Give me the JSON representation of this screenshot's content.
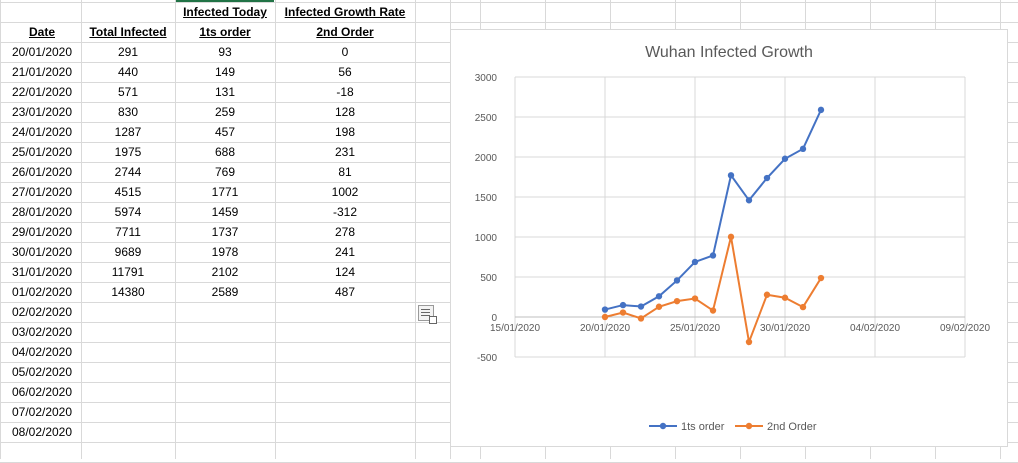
{
  "sheet": {
    "headers_row1": [
      "",
      "",
      "Infected Today",
      "Infected Growth Rate"
    ],
    "headers_row2": [
      "Date",
      "Total Infected",
      "1ts order",
      "2nd Order"
    ],
    "rows": [
      [
        "20/01/2020",
        "291",
        "93",
        "0"
      ],
      [
        "21/01/2020",
        "440",
        "149",
        "56"
      ],
      [
        "22/01/2020",
        "571",
        "131",
        "-18"
      ],
      [
        "23/01/2020",
        "830",
        "259",
        "128"
      ],
      [
        "24/01/2020",
        "1287",
        "457",
        "198"
      ],
      [
        "25/01/2020",
        "1975",
        "688",
        "231"
      ],
      [
        "26/01/2020",
        "2744",
        "769",
        "81"
      ],
      [
        "27/01/2020",
        "4515",
        "1771",
        "1002"
      ],
      [
        "28/01/2020",
        "5974",
        "1459",
        "-312"
      ],
      [
        "29/01/2020",
        "7711",
        "1737",
        "278"
      ],
      [
        "30/01/2020",
        "9689",
        "1978",
        "241"
      ],
      [
        "31/01/2020",
        "11791",
        "2102",
        "124"
      ],
      [
        "01/02/2020",
        "14380",
        "2589",
        "487"
      ],
      [
        "02/02/2020",
        "",
        "",
        ""
      ],
      [
        "03/02/2020",
        "",
        "",
        ""
      ],
      [
        "04/02/2020",
        "",
        "",
        ""
      ],
      [
        "05/02/2020",
        "",
        "",
        ""
      ],
      [
        "06/02/2020",
        "",
        "",
        ""
      ],
      [
        "07/02/2020",
        "",
        "",
        ""
      ],
      [
        "08/02/2020",
        "",
        "",
        ""
      ]
    ]
  },
  "chart_data": {
    "type": "line",
    "title": "Wuhan Infected Growth",
    "xlabel": "",
    "ylabel": "",
    "x": [
      "20/01/2020",
      "21/01/2020",
      "22/01/2020",
      "23/01/2020",
      "24/01/2020",
      "25/01/2020",
      "26/01/2020",
      "27/01/2020",
      "28/01/2020",
      "29/01/2020",
      "30/01/2020",
      "31/01/2020",
      "01/02/2020"
    ],
    "series": [
      {
        "name": "1ts order",
        "color": "#4472c4",
        "values": [
          93,
          149,
          131,
          259,
          457,
          688,
          769,
          1771,
          1459,
          1737,
          1978,
          2102,
          2589
        ]
      },
      {
        "name": "2nd Order",
        "color": "#ed7d31",
        "values": [
          0,
          56,
          -18,
          128,
          198,
          231,
          81,
          1002,
          -312,
          278,
          241,
          124,
          487
        ]
      }
    ],
    "x_ticks": [
      "15/01/2020",
      "20/01/2020",
      "25/01/2020",
      "30/01/2020",
      "04/02/2020",
      "09/02/2020"
    ],
    "xlim": [
      "15/01/2020",
      "09/02/2020"
    ],
    "y_ticks": [
      "-500",
      "0",
      "500",
      "1000",
      "1500",
      "2000",
      "2500",
      "3000"
    ],
    "ylim": [
      -500,
      3000
    ],
    "grid": true,
    "legend": "bottom"
  }
}
